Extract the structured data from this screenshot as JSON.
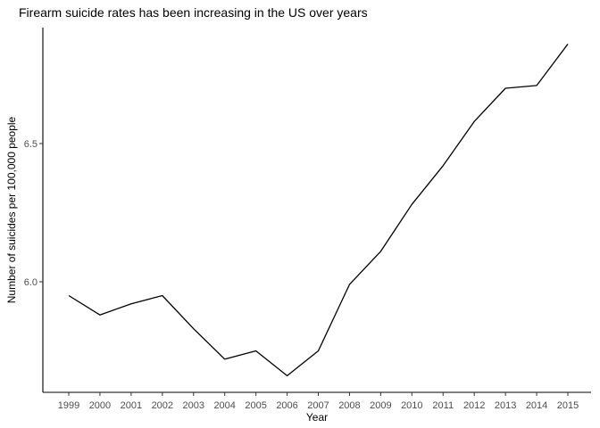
{
  "chart_data": {
    "type": "line",
    "title": "Firearm suicide rates has been increasing in the US over years",
    "xlabel": "Year",
    "ylabel": "Number of suicides per 100,000 people",
    "x": [
      1999,
      2000,
      2001,
      2002,
      2003,
      2004,
      2005,
      2006,
      2007,
      2008,
      2009,
      2010,
      2011,
      2012,
      2013,
      2014,
      2015
    ],
    "x_tick_labels": [
      "1999",
      "2000",
      "2001",
      "2002",
      "2003",
      "2004",
      "2005",
      "2006",
      "2007",
      "2008",
      "2009",
      "2010",
      "2011",
      "2012",
      "2013",
      "2014",
      "2015"
    ],
    "series": [
      {
        "values": [
          5.95,
          5.88,
          5.92,
          5.95,
          5.83,
          5.72,
          5.75,
          5.66,
          5.75,
          5.99,
          6.11,
          6.28,
          6.42,
          6.58,
          6.7,
          6.71,
          6.86
        ]
      }
    ],
    "y_ticks": [
      6.0,
      6.5
    ],
    "y_tick_labels": [
      "6.0",
      "6.5"
    ],
    "ylim": [
      5.6,
      6.9
    ],
    "grid": false,
    "line_color": "#000000"
  }
}
